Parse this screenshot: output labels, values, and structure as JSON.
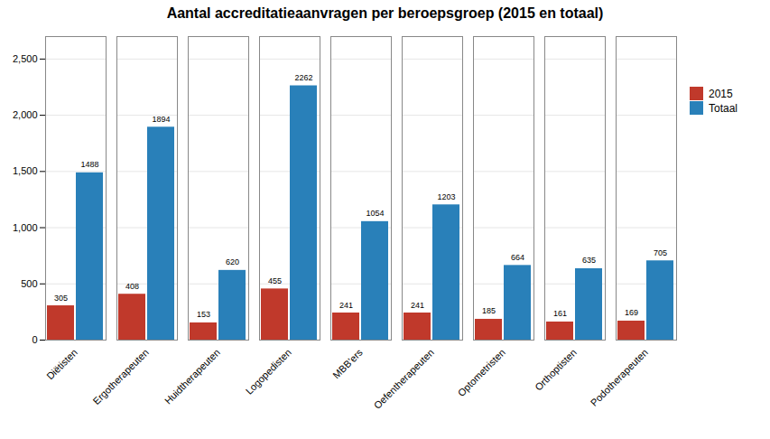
{
  "chart_data": {
    "type": "bar",
    "title": "Aantal accreditatieaanvragen per beroepsgroep  (2015 en totaal)",
    "categories": [
      "Diëtisten",
      "Ergotherapeuten",
      "Huidtherapeuten",
      "Logopedisten",
      "MBB'ers",
      "Oefentherapeuten",
      "Optometristen",
      "Orthoptisten",
      "Podotherapeuten"
    ],
    "series": [
      {
        "name": "2015",
        "color": "#c0392b",
        "values": [
          305,
          408,
          153,
          455,
          241,
          241,
          185,
          161,
          169
        ]
      },
      {
        "name": "Totaal",
        "color": "#2980b9",
        "values": [
          1488,
          1894,
          620,
          2262,
          1054,
          1203,
          664,
          635,
          705
        ]
      }
    ],
    "ylim": [
      0,
      2700
    ],
    "yticks": [
      0,
      500,
      1000,
      1500,
      2000,
      2500
    ],
    "grid": true,
    "data_labels": true,
    "legend": "right"
  }
}
